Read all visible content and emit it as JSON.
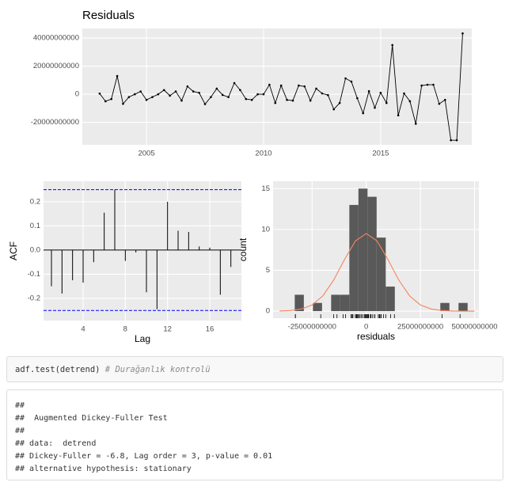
{
  "chart_data": [
    {
      "type": "line",
      "title": "Residuals",
      "color": "#000000",
      "x": [
        2003,
        2003.25,
        2003.5,
        2003.75,
        2004,
        2004.25,
        2004.5,
        2004.75,
        2005,
        2005.25,
        2005.5,
        2005.75,
        2006,
        2006.25,
        2006.5,
        2006.75,
        2007,
        2007.25,
        2007.5,
        2007.75,
        2008,
        2008.25,
        2008.5,
        2008.75,
        2009,
        2009.25,
        2009.5,
        2009.75,
        2010,
        2010.25,
        2010.5,
        2010.75,
        2011,
        2011.25,
        2011.5,
        2011.75,
        2012,
        2012.25,
        2012.5,
        2012.75,
        2013,
        2013.25,
        2013.5,
        2013.75,
        2014,
        2014.25,
        2014.5,
        2014.75,
        2015,
        2015.25,
        2015.5,
        2015.75,
        2016,
        2016.25,
        2016.5,
        2016.75,
        2017,
        2017.25,
        2017.5,
        2017.75,
        2018,
        2018.25,
        2018.5
      ],
      "values": [
        500000000,
        -5000000000,
        -3400000000,
        13000000000,
        -6800000000,
        -2000000000,
        0,
        2000000000,
        -4000000000,
        -2000000000,
        0,
        3000000000,
        -1000000000,
        2000000000,
        -4500000000,
        5600000000,
        2000000000,
        1000000000,
        -7000000000,
        -2000000000,
        4000000000,
        -500000000,
        -2000000000,
        8000000000,
        3000000000,
        -3400000000,
        -4000000000,
        0,
        0,
        6800000000,
        -6200000000,
        6200000000,
        -4000000000,
        -4500000000,
        6200000000,
        5600000000,
        -4500000000,
        4000000000,
        600000000,
        -600000000,
        -10700000000,
        -6200000000,
        11300000000,
        9000000000,
        -2800000000,
        -13500000000,
        2200000000,
        -9600000000,
        1100000000,
        -6200000000,
        35000000000,
        -15000000000,
        600000000,
        -5000000000,
        -21000000000,
        6200000000,
        6800000000,
        6800000000,
        -6800000000,
        -4000000000,
        -32700000000,
        -32700000000,
        43300000000
      ],
      "xlim": [
        2002.26,
        2018.89
      ],
      "xticks": [
        2005,
        2010,
        2015
      ],
      "ylim": [
        -36000000000,
        46800000000
      ],
      "yticks": [
        -20000000000,
        0,
        20000000000,
        40000000000
      ],
      "grid": true
    },
    {
      "type": "acf",
      "x_label": "Lag",
      "y_label": "ACF",
      "color": "#000000",
      "ci_color": "#0000ff",
      "x": [
        1,
        2,
        3,
        4,
        5,
        6,
        7,
        8,
        9,
        10,
        11,
        12,
        13,
        14,
        15,
        16,
        17,
        18
      ],
      "values": [
        -0.15,
        -0.18,
        -0.125,
        -0.135,
        -0.05,
        0.155,
        0.25,
        -0.045,
        -0.01,
        -0.175,
        -0.245,
        0.2,
        0.08,
        0.075,
        0.015,
        0.01,
        -0.185,
        -0.07
      ],
      "ci": [
        0.25,
        -0.25
      ],
      "xlim": [
        0.25,
        19
      ],
      "xticks": [
        4,
        8,
        12,
        16
      ],
      "ylim": [
        -0.292,
        0.285
      ],
      "yticks": [
        -0.2,
        -0.1,
        {
          "value": 0,
          "label": "0.0"
        },
        0.1,
        0.2
      ],
      "grid": true
    },
    {
      "type": "histogram",
      "x_label": "residuals",
      "y_label": "count",
      "color": "#595959",
      "bins": [
        -33000000000,
        -28800000000,
        -24600000000,
        -20400000000,
        -16200000000,
        -12000000000,
        -7800000000,
        -3600000000,
        600000000,
        4800000000,
        9000000000,
        13200000000,
        17400000000,
        21600000000,
        25800000000,
        30000000000,
        34200000000,
        38400000000,
        42600000000,
        46800000000
      ],
      "values": [
        2,
        0,
        1,
        0,
        2,
        2,
        13,
        15,
        14,
        9,
        3,
        0,
        0,
        0,
        0,
        0,
        1,
        0,
        1
      ],
      "density": {
        "color": "#f4845f",
        "x": [
          -40000000000,
          -35000000000,
          -30000000000,
          -25000000000,
          -20000000000,
          -15000000000,
          -10000000000,
          -5000000000,
          0,
          5000000000,
          10000000000,
          15000000000,
          20000000000,
          25000000000,
          30000000000,
          35000000000,
          40000000000,
          45000000000,
          50000000000
        ],
        "values": [
          0.01,
          0.07,
          0.25,
          0.75,
          1.87,
          3.81,
          6.33,
          8.59,
          9.5,
          8.59,
          6.33,
          3.81,
          1.87,
          0.75,
          0.25,
          0.07,
          0.01,
          0,
          0
        ]
      },
      "xlim": [
        -43000000000,
        52000000000
      ],
      "xticks": [
        -25000000000,
        0,
        25000000000,
        50000000000
      ],
      "ylim": [
        -0.87,
        15.9
      ],
      "yticks": [
        0,
        5,
        10,
        15
      ],
      "grid": true
    }
  ],
  "code": {
    "command": "adf.test(detrend)",
    "comment": "# Durağanlık kontrolü"
  },
  "output": [
    "##",
    "##  Augmented Dickey-Fuller Test",
    "##",
    "## data:  detrend",
    "## Dickey-Fuller = -6.8, Lag order = 3, p-value = 0.01",
    "## alternative hypothesis: stationary"
  ]
}
